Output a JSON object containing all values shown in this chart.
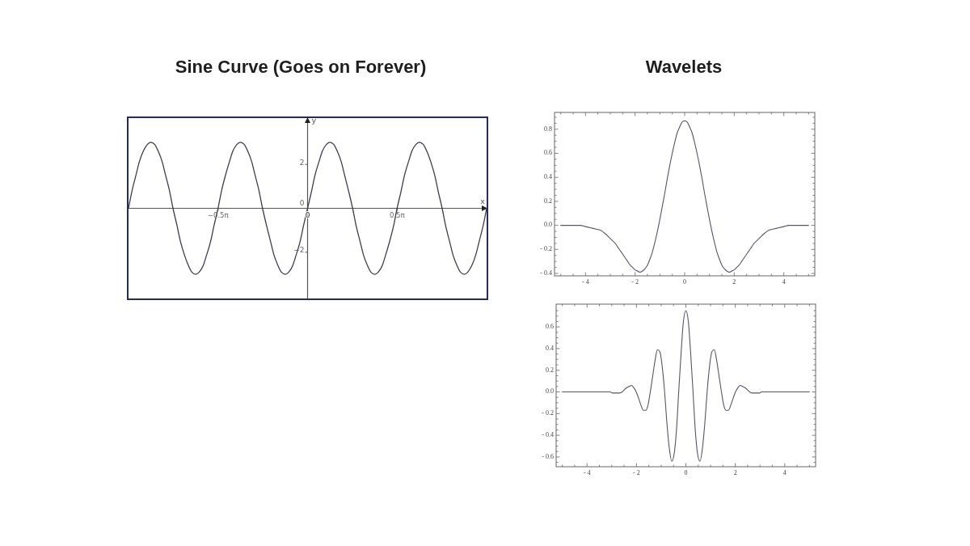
{
  "chart_data": [
    {
      "type": "line",
      "title": "Sine Curve (Goes on Forever)",
      "xlabel": "x",
      "ylabel": "y",
      "x": [
        -3.14,
        -3.08,
        -3.01,
        -2.95,
        -2.88,
        -2.81,
        -2.75,
        -2.68,
        -2.62,
        -2.55,
        -2.49,
        -2.42,
        -2.36,
        -2.29,
        -2.23,
        -2.16,
        -2.09,
        -2.03,
        -1.96,
        -1.9,
        -1.83,
        -1.77,
        -1.7,
        -1.64,
        -1.57,
        -1.51,
        -1.44,
        -1.37,
        -1.31,
        -1.24,
        -1.18,
        -1.11,
        -1.05,
        -0.98,
        -0.92,
        -0.85,
        -0.79,
        -0.72,
        -0.65,
        -0.59,
        -0.52,
        -0.46,
        -0.39,
        -0.33,
        -0.26,
        -0.2,
        -0.13,
        -0.07,
        0,
        0.07,
        0.13,
        0.2,
        0.26,
        0.33,
        0.39,
        0.46,
        0.52,
        0.59,
        0.65,
        0.72,
        0.79,
        0.85,
        0.92,
        0.98,
        1.05,
        1.11,
        1.18,
        1.24,
        1.31,
        1.37,
        1.44,
        1.51,
        1.57,
        1.64,
        1.7,
        1.77,
        1.83,
        1.9,
        1.96,
        2.03,
        2.09,
        2.16,
        2.23,
        2.29,
        2.36,
        2.42,
        2.49,
        2.55,
        2.62,
        2.68,
        2.75,
        2.81,
        2.88,
        2.95,
        3.01,
        3.08,
        3.14
      ],
      "series": [
        {
          "color": "#3d3d4f",
          "values": [
            0,
            0.78,
            1.5,
            2.12,
            2.6,
            2.9,
            3,
            2.9,
            2.6,
            2.12,
            1.5,
            0.78,
            0,
            -0.78,
            -1.5,
            -2.12,
            -2.6,
            -2.9,
            -3,
            -2.9,
            -2.6,
            -2.12,
            -1.5,
            -0.78,
            0,
            0.78,
            1.5,
            2.12,
            2.6,
            2.9,
            3,
            2.9,
            2.6,
            2.12,
            1.5,
            0.78,
            0,
            -0.78,
            -1.5,
            -2.12,
            -2.6,
            -2.9,
            -3,
            -2.9,
            -2.6,
            -2.12,
            -1.5,
            -0.78,
            0,
            0.78,
            1.5,
            2.12,
            2.6,
            2.9,
            3,
            2.9,
            2.6,
            2.12,
            1.5,
            0.78,
            0,
            -0.78,
            -1.5,
            -2.12,
            -2.6,
            -2.9,
            -3,
            -2.9,
            -2.6,
            -2.12,
            -1.5,
            -0.78,
            0,
            0.78,
            1.5,
            2.12,
            2.6,
            2.9,
            3,
            2.9,
            2.6,
            2.12,
            1.5,
            0.78,
            0,
            -0.78,
            -1.5,
            -2.12,
            -2.6,
            -2.9,
            -3,
            -2.9,
            -2.6,
            -2.12,
            -1.5,
            -0.78,
            0
          ]
        }
      ],
      "xlim": [
        -3.14,
        3.14
      ],
      "ylim": [
        -4.1,
        4.1
      ],
      "xticks": [
        {
          "value": -1.57,
          "label": "−0.5π"
        },
        0,
        {
          "value": 1.57,
          "label": "0.5π"
        }
      ],
      "yticks": [
        {
          "value": -2,
          "label": "−2"
        },
        0,
        2
      ]
    },
    {
      "type": "line",
      "title": "Wavelets",
      "x": [
        -5,
        -4.8,
        -4.6,
        -4.4,
        -4.2,
        -4,
        -3.8,
        -3.6,
        -3.4,
        -3.2,
        -3,
        -2.9,
        -2.8,
        -2.7,
        -2.6,
        -2.5,
        -2.4,
        -2.3,
        -2.2,
        -2.1,
        -2,
        -1.9,
        -1.8,
        -1.7,
        -1.6,
        -1.5,
        -1.4,
        -1.3,
        -1.2,
        -1.1,
        -1,
        -0.9,
        -0.8,
        -0.7,
        -0.6,
        -0.5,
        -0.4,
        -0.3,
        -0.2,
        -0.1,
        0,
        0.1,
        0.2,
        0.3,
        0.4,
        0.5,
        0.6,
        0.7,
        0.8,
        0.9,
        1,
        1.1,
        1.2,
        1.3,
        1.4,
        1.5,
        1.6,
        1.7,
        1.8,
        1.9,
        2,
        2.1,
        2.2,
        2.3,
        2.4,
        2.5,
        2.6,
        2.7,
        2.8,
        2.9,
        3,
        3.2,
        3.4,
        3.6,
        3.8,
        4,
        4.2,
        4.4,
        4.6,
        4.8,
        5
      ],
      "series": [
        {
          "color": "#55556a",
          "values": [
            0,
            0,
            0,
            0,
            0,
            -0.01,
            -0.02,
            -0.03,
            -0.04,
            -0.07,
            -0.11,
            -0.13,
            -0.15,
            -0.18,
            -0.21,
            -0.24,
            -0.27,
            -0.3,
            -0.33,
            -0.35,
            -0.37,
            -0.38,
            -0.39,
            -0.38,
            -0.36,
            -0.33,
            -0.28,
            -0.22,
            -0.14,
            -0.05,
            0.05,
            0.16,
            0.27,
            0.39,
            0.5,
            0.6,
            0.69,
            0.77,
            0.82,
            0.86,
            0.87,
            0.86,
            0.82,
            0.77,
            0.69,
            0.6,
            0.5,
            0.39,
            0.27,
            0.16,
            0.05,
            -0.05,
            -0.14,
            -0.22,
            -0.28,
            -0.33,
            -0.36,
            -0.38,
            -0.39,
            -0.38,
            -0.37,
            -0.35,
            -0.33,
            -0.3,
            -0.27,
            -0.24,
            -0.21,
            -0.18,
            -0.15,
            -0.13,
            -0.11,
            -0.07,
            -0.04,
            -0.03,
            -0.02,
            -0.01,
            0,
            0,
            0,
            0,
            0
          ]
        }
      ],
      "xlim": [
        -5.25,
        5.25
      ],
      "ylim": [
        -0.42,
        0.94
      ],
      "xticks": [
        {
          "value": -5,
          "label": null
        },
        {
          "value": -4.5,
          "label": null
        },
        {
          "value": -4,
          "label": "- 4"
        },
        {
          "value": -3.5,
          "label": null
        },
        {
          "value": -3,
          "label": null
        },
        {
          "value": -2.5,
          "label": null
        },
        {
          "value": -2,
          "label": "- 2"
        },
        {
          "value": -1.5,
          "label": null
        },
        {
          "value": -1,
          "label": null
        },
        {
          "value": -0.5,
          "label": null
        },
        0,
        {
          "value": 0.5,
          "label": null
        },
        {
          "value": 1,
          "label": null
        },
        {
          "value": 1.5,
          "label": null
        },
        2,
        {
          "value": 2.5,
          "label": null
        },
        {
          "value": 3,
          "label": null
        },
        {
          "value": 3.5,
          "label": null
        },
        4,
        {
          "value": 4.5,
          "label": null
        },
        {
          "value": 5,
          "label": null
        }
      ],
      "yticks": [
        {
          "value": -0.4,
          "label": "- 0.4"
        },
        {
          "value": -0.35,
          "label": null
        },
        {
          "value": -0.3,
          "label": null
        },
        {
          "value": -0.25,
          "label": null
        },
        {
          "value": -0.2,
          "label": "- 0.2"
        },
        {
          "value": -0.15,
          "label": null
        },
        {
          "value": -0.1,
          "label": null
        },
        {
          "value": -0.05,
          "label": null
        },
        {
          "value": 0,
          "label": "0.0"
        },
        {
          "value": 0.05,
          "label": null
        },
        {
          "value": 0.1,
          "label": null
        },
        {
          "value": 0.15,
          "label": null
        },
        0.2,
        {
          "value": 0.25,
          "label": null
        },
        {
          "value": 0.3,
          "label": null
        },
        {
          "value": 0.35,
          "label": null
        },
        0.4,
        {
          "value": 0.45,
          "label": null
        },
        {
          "value": 0.5,
          "label": null
        },
        {
          "value": 0.55,
          "label": null
        },
        0.6,
        {
          "value": 0.65,
          "label": null
        },
        {
          "value": 0.7,
          "label": null
        },
        {
          "value": 0.75,
          "label": null
        },
        0.8,
        {
          "value": 0.85,
          "label": null
        },
        {
          "value": 0.9,
          "label": null
        }
      ]
    },
    {
      "type": "line",
      "x": [
        -5,
        -4.5,
        -4,
        -3.5,
        -3.06,
        -2.97,
        -2.87,
        -2.78,
        -2.68,
        -2.58,
        -2.49,
        -2.39,
        -2.3,
        -2.2,
        -2.11,
        -2.01,
        -1.91,
        -1.82,
        -1.72,
        -1.63,
        -1.53,
        -1.44,
        -1.34,
        -1.24,
        -1.15,
        -1.05,
        -0.96,
        -0.86,
        -0.77,
        -0.67,
        -0.57,
        -0.48,
        -0.38,
        -0.29,
        -0.19,
        -0.1,
        0,
        0.1,
        0.19,
        0.29,
        0.38,
        0.48,
        0.57,
        0.67,
        0.77,
        0.86,
        0.96,
        1.05,
        1.15,
        1.24,
        1.34,
        1.44,
        1.53,
        1.63,
        1.72,
        1.82,
        1.91,
        2.01,
        2.11,
        2.2,
        2.3,
        2.39,
        2.49,
        2.58,
        2.68,
        2.78,
        2.87,
        2.97,
        3.06,
        3.5,
        4,
        4.5,
        5
      ],
      "series": [
        {
          "color": "#55556a",
          "values": [
            0,
            0,
            0,
            0,
            0,
            -0.01,
            -0.01,
            -0.01,
            -0.01,
            0,
            0.02,
            0.04,
            0.05,
            0.06,
            0.04,
            0,
            -0.06,
            -0.12,
            -0.17,
            -0.17,
            -0.12,
            0,
            0.15,
            0.3,
            0.39,
            0.37,
            0.24,
            0,
            -0.28,
            -0.52,
            -0.64,
            -0.58,
            -0.35,
            0,
            0.37,
            0.65,
            0.75,
            0.65,
            0.37,
            0,
            -0.35,
            -0.58,
            -0.64,
            -0.52,
            -0.28,
            0,
            0.24,
            0.37,
            0.39,
            0.3,
            0.15,
            0,
            -0.12,
            -0.17,
            -0.17,
            -0.12,
            -0.06,
            0,
            0.04,
            0.06,
            0.05,
            0.04,
            0.02,
            0,
            -0.01,
            -0.01,
            -0.01,
            -0.01,
            0,
            0,
            0,
            0,
            0
          ]
        }
      ],
      "xlim": [
        -5.25,
        5.25
      ],
      "ylim": [
        -0.69,
        0.81
      ],
      "xticks": [
        {
          "value": -5,
          "label": null
        },
        {
          "value": -4.5,
          "label": null
        },
        {
          "value": -4,
          "label": "- 4"
        },
        {
          "value": -3.5,
          "label": null
        },
        {
          "value": -3,
          "label": null
        },
        {
          "value": -2.5,
          "label": null
        },
        {
          "value": -2,
          "label": "- 2"
        },
        {
          "value": -1.5,
          "label": null
        },
        {
          "value": -1,
          "label": null
        },
        {
          "value": -0.5,
          "label": null
        },
        0,
        {
          "value": 0.5,
          "label": null
        },
        {
          "value": 1,
          "label": null
        },
        {
          "value": 1.5,
          "label": null
        },
        2,
        {
          "value": 2.5,
          "label": null
        },
        {
          "value": 3,
          "label": null
        },
        {
          "value": 3.5,
          "label": null
        },
        4,
        {
          "value": 4.5,
          "label": null
        },
        {
          "value": 5,
          "label": null
        }
      ],
      "yticks": [
        {
          "value": -0.65,
          "label": null
        },
        {
          "value": -0.6,
          "label": "- 0.6"
        },
        {
          "value": -0.55,
          "label": null
        },
        {
          "value": -0.5,
          "label": null
        },
        {
          "value": -0.45,
          "label": null
        },
        {
          "value": -0.4,
          "label": "- 0.4"
        },
        {
          "value": -0.35,
          "label": null
        },
        {
          "value": -0.3,
          "label": null
        },
        {
          "value": -0.25,
          "label": null
        },
        {
          "value": -0.2,
          "label": "- 0.2"
        },
        {
          "value": -0.15,
          "label": null
        },
        {
          "value": -0.1,
          "label": null
        },
        {
          "value": -0.05,
          "label": null
        },
        {
          "value": 0,
          "label": "0.0"
        },
        {
          "value": 0.05,
          "label": null
        },
        {
          "value": 0.1,
          "label": null
        },
        {
          "value": 0.15,
          "label": null
        },
        0.2,
        {
          "value": 0.25,
          "label": null
        },
        {
          "value": 0.3,
          "label": null
        },
        {
          "value": 0.35,
          "label": null
        },
        0.4,
        {
          "value": 0.45,
          "label": null
        },
        {
          "value": 0.5,
          "label": null
        },
        {
          "value": 0.55,
          "label": null
        },
        0.6,
        {
          "value": 0.65,
          "label": null
        },
        {
          "value": 0.7,
          "label": null
        },
        {
          "value": 0.75,
          "label": null
        }
      ]
    }
  ]
}
